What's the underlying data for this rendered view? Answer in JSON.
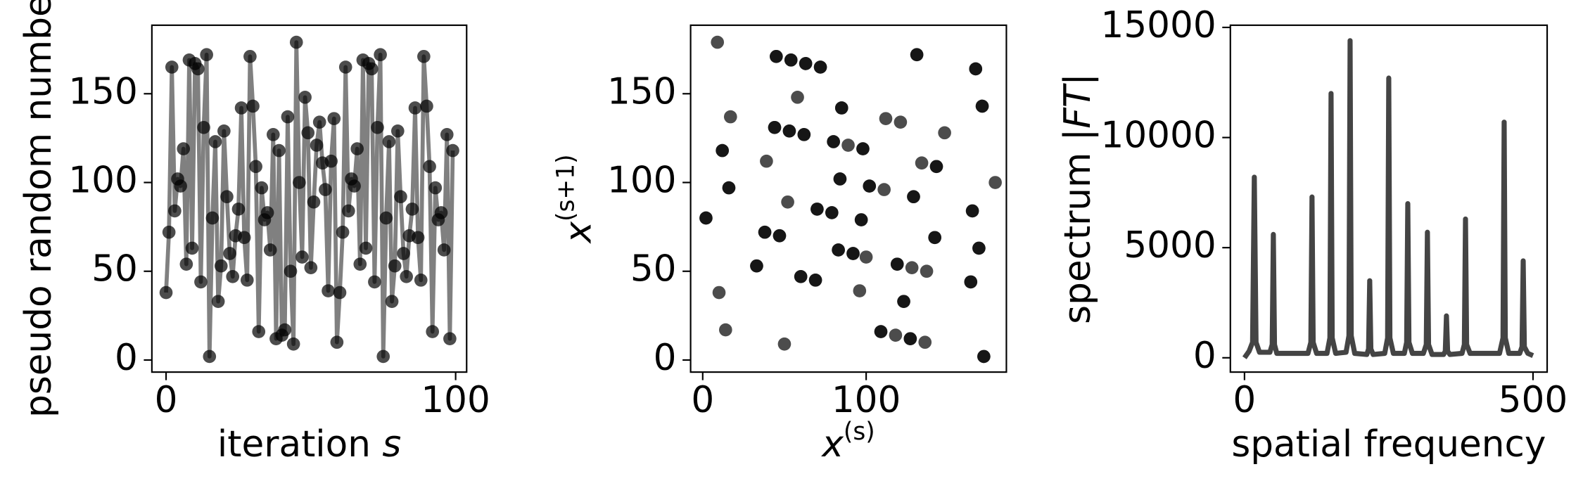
{
  "chart_data": [
    {
      "type": "line",
      "xlabel": {
        "text": "iteration ",
        "math": "s"
      },
      "ylabel": {
        "text": "pseudo random number"
      },
      "xlim": [
        -4.9,
        103.8
      ],
      "ylim": [
        -6.8,
        188.6
      ],
      "xticks": [
        0,
        100
      ],
      "yticks": [
        0,
        50,
        100,
        150
      ],
      "line_color": "#808080",
      "marker_color": "#000000",
      "x": [
        0,
        1,
        2,
        3,
        4,
        5,
        6,
        7,
        8,
        9,
        10,
        11,
        12,
        13,
        14,
        15,
        16,
        17,
        18,
        19,
        20,
        21,
        22,
        23,
        24,
        25,
        26,
        27,
        28,
        29,
        30,
        31,
        32,
        33,
        34,
        35,
        36,
        37,
        38,
        39,
        40,
        41,
        42,
        43,
        44,
        45,
        46,
        47,
        48,
        49,
        50,
        51,
        52,
        53,
        54,
        55,
        56,
        57,
        58,
        59,
        60,
        61,
        62,
        63,
        64,
        65,
        66,
        67,
        68,
        69,
        70,
        71,
        72,
        73,
        74,
        75,
        76,
        77,
        78,
        79,
        80,
        81,
        82,
        83,
        84,
        85,
        86,
        87,
        88,
        89,
        90,
        91,
        92,
        93,
        94,
        95,
        96,
        97,
        98,
        99
      ],
      "values": [
        38,
        72,
        165,
        84,
        102,
        98,
        119,
        54,
        169,
        63,
        167,
        164,
        44,
        131,
        172,
        2,
        80,
        123,
        33,
        53,
        129,
        92,
        60,
        47,
        70,
        85,
        142,
        69,
        45,
        171,
        143,
        109,
        16,
        97,
        79,
        83,
        62,
        127,
        12,
        118,
        14,
        17,
        137,
        50,
        9,
        179,
        100,
        58,
        148,
        128,
        52,
        89,
        121,
        134,
        111,
        96,
        39,
        112,
        136,
        10,
        38,
        72,
        165,
        84,
        102,
        98,
        119,
        54,
        169,
        63,
        167,
        164,
        44,
        131,
        172,
        2,
        80,
        123,
        33,
        53,
        129,
        92,
        60,
        47,
        70,
        85,
        142,
        69,
        45,
        171,
        143,
        109,
        16,
        97,
        79,
        83,
        62,
        127,
        12,
        118
      ]
    },
    {
      "type": "scatter",
      "xlabel": {
        "math": "x",
        "sup": "(s)"
      },
      "ylabel": {
        "math": "x",
        "sup": "(s+1)"
      },
      "xlim": [
        -7.4,
        185.8
      ],
      "ylim": [
        -6.8,
        188.6
      ],
      "xticks": [
        0,
        100
      ],
      "yticks": [
        0,
        50,
        100,
        150
      ],
      "marker_color": "#000000",
      "x": [
        38,
        72,
        165,
        84,
        102,
        98,
        119,
        54,
        169,
        63,
        167,
        164,
        44,
        131,
        172,
        2,
        80,
        123,
        33,
        53,
        129,
        92,
        60,
        47,
        70,
        85,
        142,
        69,
        45,
        171,
        143,
        109,
        16,
        97,
        79,
        83,
        62,
        127,
        12,
        118,
        14,
        17,
        137,
        50,
        9,
        179,
        100,
        58,
        148,
        128,
        52,
        89,
        121,
        134,
        111,
        96,
        39,
        112,
        136,
        10,
        38,
        72,
        165,
        84,
        102,
        98,
        119,
        54,
        169,
        63,
        167,
        164,
        44,
        131,
        172,
        2,
        80,
        123,
        33,
        53,
        129,
        92,
        60,
        47,
        70,
        85,
        142,
        69,
        45,
        171,
        143,
        109,
        16,
        97,
        79,
        83,
        62,
        127,
        12
      ],
      "values": [
        72,
        165,
        84,
        102,
        98,
        119,
        54,
        169,
        63,
        167,
        164,
        44,
        131,
        172,
        2,
        80,
        123,
        33,
        53,
        129,
        92,
        60,
        47,
        70,
        85,
        142,
        69,
        45,
        171,
        143,
        109,
        16,
        97,
        79,
        83,
        62,
        127,
        12,
        118,
        14,
        17,
        137,
        50,
        9,
        179,
        100,
        58,
        148,
        128,
        52,
        89,
        121,
        134,
        111,
        96,
        39,
        112,
        136,
        10,
        38,
        72,
        165,
        84,
        102,
        98,
        119,
        54,
        169,
        63,
        167,
        164,
        44,
        131,
        172,
        2,
        80,
        123,
        33,
        53,
        129,
        92,
        60,
        47,
        70,
        85,
        142,
        69,
        45,
        171,
        143,
        109,
        16,
        97,
        79,
        83,
        62,
        127,
        12,
        118
      ]
    },
    {
      "type": "line",
      "xlabel": {
        "text": "spatial frequency"
      },
      "ylabel": {
        "text": "spectrum |",
        "math": "FT",
        "after": "|"
      },
      "xlim": [
        -24.5,
        524.5
      ],
      "ylim": [
        -650,
        15100
      ],
      "xticks": [
        0,
        500
      ],
      "yticks": [
        0,
        5000,
        10000,
        15000
      ],
      "line_color": "#444444",
      "x": [
        0,
        8,
        14,
        17,
        20,
        26,
        44,
        48,
        50,
        52,
        56,
        110,
        115,
        117,
        119,
        125,
        143,
        148,
        150,
        152,
        158,
        176,
        181,
        183,
        185,
        191,
        212,
        215,
        217,
        219,
        223,
        243,
        248,
        250,
        252,
        258,
        277,
        281,
        283,
        285,
        291,
        310,
        315,
        317,
        319,
        325,
        345,
        348,
        350,
        352,
        356,
        377,
        381,
        383,
        385,
        391,
        442,
        448,
        450,
        452,
        458,
        477,
        481,
        483,
        485,
        491,
        500
      ],
      "values": [
        0,
        300,
        700,
        8200,
        700,
        250,
        250,
        600,
        5600,
        600,
        200,
        200,
        700,
        7300,
        700,
        200,
        200,
        900,
        12000,
        900,
        200,
        250,
        1000,
        14400,
        1000,
        200,
        150,
        400,
        3500,
        400,
        150,
        200,
        900,
        12700,
        900,
        200,
        200,
        700,
        7000,
        700,
        200,
        200,
        600,
        5700,
        600,
        150,
        150,
        300,
        1900,
        300,
        150,
        200,
        600,
        6300,
        600,
        200,
        200,
        900,
        10700,
        900,
        200,
        200,
        500,
        4400,
        500,
        200,
        100
      ]
    }
  ]
}
